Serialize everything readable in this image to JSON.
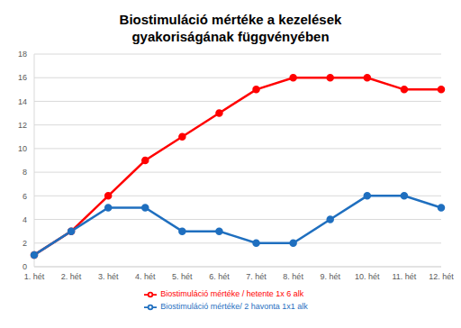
{
  "chart_data": {
    "type": "line",
    "title": "Biostimuláció mértéke a kezelések gyakoriságának függvényében",
    "categories": [
      "1. hét",
      "2. hét",
      "3. hét",
      "4. hét",
      "5. hét",
      "6. hét",
      "7. hét",
      "8. hét",
      "9. hét",
      "10. hét",
      "11. hét",
      "12. hét"
    ],
    "series": [
      {
        "name": "Biostimuláció mértéke / hetente 1x 6 alk",
        "color": "#ff0000",
        "marker": "circle",
        "line_style": "solid",
        "values": [
          1,
          3,
          6,
          9,
          11,
          13,
          15,
          16,
          16,
          16,
          15,
          15
        ]
      },
      {
        "name": "Biostimuláció mértéke/ 2 havonta 1x1 alk",
        "color": "#1f6fbf",
        "marker": "circle",
        "line_style": "solid",
        "values": [
          1,
          3,
          5,
          5,
          3,
          3,
          2,
          2,
          4,
          6,
          6,
          5
        ]
      }
    ],
    "ylim": [
      0,
      18
    ],
    "yticks": [
      0,
      2,
      4,
      6,
      8,
      10,
      12,
      14,
      16,
      18
    ],
    "grid": true,
    "legend": "bottom"
  }
}
